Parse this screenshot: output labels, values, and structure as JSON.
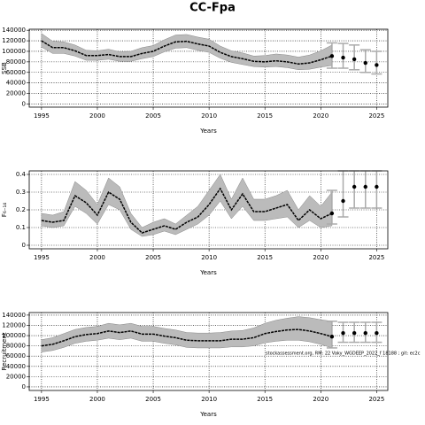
{
  "title": "CC-Fpa",
  "chart_data": [
    {
      "type": "line",
      "ylabel": "SSB",
      "xlabel": "Years",
      "xlim": [
        1993.9,
        2026
      ],
      "xticks": [
        1995,
        2000,
        2005,
        2010,
        2015,
        2020,
        2025
      ],
      "ylim": [
        -6000,
        142000
      ],
      "yticks": [
        0,
        20000,
        40000,
        60000,
        80000,
        100000,
        120000,
        140000
      ],
      "grid": true,
      "x": [
        1995,
        1996,
        1997,
        1998,
        1999,
        2000,
        2001,
        2002,
        2003,
        2004,
        2005,
        2006,
        2007,
        2008,
        2009,
        2010,
        2011,
        2012,
        2013,
        2014,
        2015,
        2016,
        2017,
        2018,
        2019,
        2020,
        2021
      ],
      "series": [
        {
          "color": "#000000",
          "band_color": "#bbbbbb",
          "values": [
            120000,
            107000,
            107000,
            101000,
            92000,
            92000,
            94000,
            90000,
            90000,
            96000,
            100000,
            110000,
            118000,
            119000,
            114000,
            110000,
            98000,
            90000,
            86000,
            81000,
            80000,
            82000,
            80000,
            76000,
            78000,
            84000,
            91000
          ],
          "upper": [
            134000,
            119000,
            118000,
            112000,
            102000,
            101000,
            104000,
            99000,
            100000,
            107000,
            111000,
            122000,
            131000,
            132000,
            127000,
            123000,
            110000,
            101000,
            97000,
            91000,
            92000,
            95000,
            93000,
            89000,
            93000,
            101000,
            112000
          ],
          "lower": [
            108000,
            96000,
            96000,
            91000,
            83000,
            83000,
            85000,
            81000,
            81000,
            86000,
            90000,
            99000,
            106000,
            107000,
            102000,
            98000,
            87000,
            79000,
            75000,
            71000,
            70000,
            71000,
            69000,
            65000,
            66000,
            70000,
            73000
          ]
        }
      ],
      "forecast": {
        "color": "#000000",
        "bar_color": "#aaaaaa",
        "x": [
          2021,
          2022,
          2023,
          2024,
          2025
        ],
        "values": [
          91000,
          88000,
          85000,
          78000,
          74000
        ],
        "lower": [
          68000,
          68000,
          65000,
          60000,
          57000
        ],
        "upper": [
          116000,
          115000,
          112000,
          103000,
          100000
        ]
      }
    },
    {
      "type": "line",
      "ylabel": "F₆₋₁₄",
      "xlabel": "Years",
      "xlim": [
        1993.9,
        2026
      ],
      "xticks": [
        1995,
        2000,
        2005,
        2010,
        2015,
        2020,
        2025
      ],
      "ylim": [
        -0.02,
        0.42
      ],
      "yticks": [
        0,
        0.1,
        0.2,
        0.3,
        0.4
      ],
      "grid": true,
      "x": [
        1995,
        1996,
        1997,
        1998,
        1999,
        2000,
        2001,
        2002,
        2003,
        2004,
        2005,
        2006,
        2007,
        2008,
        2009,
        2010,
        2011,
        2012,
        2013,
        2014,
        2015,
        2016,
        2017,
        2018,
        2019,
        2020,
        2021
      ],
      "series": [
        {
          "color": "#000000",
          "band_color": "#bbbbbb",
          "values": [
            0.14,
            0.13,
            0.14,
            0.28,
            0.24,
            0.17,
            0.3,
            0.26,
            0.13,
            0.07,
            0.09,
            0.11,
            0.09,
            0.13,
            0.16,
            0.23,
            0.32,
            0.2,
            0.29,
            0.19,
            0.19,
            0.21,
            0.23,
            0.14,
            0.2,
            0.15,
            0.18
          ],
          "upper": [
            0.18,
            0.17,
            0.19,
            0.36,
            0.31,
            0.23,
            0.38,
            0.33,
            0.18,
            0.1,
            0.13,
            0.15,
            0.12,
            0.17,
            0.22,
            0.31,
            0.4,
            0.26,
            0.38,
            0.26,
            0.26,
            0.28,
            0.31,
            0.2,
            0.28,
            0.22,
            0.3
          ],
          "lower": [
            0.11,
            0.1,
            0.11,
            0.22,
            0.18,
            0.12,
            0.23,
            0.2,
            0.09,
            0.05,
            0.06,
            0.08,
            0.06,
            0.09,
            0.12,
            0.17,
            0.25,
            0.15,
            0.22,
            0.14,
            0.14,
            0.15,
            0.16,
            0.1,
            0.14,
            0.1,
            0.11
          ]
        }
      ],
      "forecast": {
        "color": "#000000",
        "bar_color": "#aaaaaa",
        "x": [
          2021,
          2022,
          2023,
          2024,
          2025
        ],
        "values": [
          0.18,
          0.25,
          0.33,
          0.33,
          0.33
        ],
        "lower": [
          0.12,
          0.16,
          0.21,
          0.21,
          0.21
        ],
        "upper": [
          0.31,
          0.42,
          0.42,
          0.42,
          0.42
        ]
      }
    },
    {
      "type": "line",
      "ylabel": "Recruitment",
      "xlabel": "Years",
      "annotation": "stockassessment.org, RM: 22 Vaky_WGDEEP_2022_f 18188 ; git: ec2c",
      "xlim": [
        1993.9,
        2026
      ],
      "xticks": [
        1995,
        2000,
        2005,
        2010,
        2015,
        2020,
        2025
      ],
      "ylim": [
        -7000,
        145000
      ],
      "yticks": [
        0,
        20000,
        40000,
        60000,
        80000,
        100000,
        120000,
        140000
      ],
      "grid": true,
      "x": [
        1995,
        1996,
        1997,
        1998,
        1999,
        2000,
        2001,
        2002,
        2003,
        2004,
        2005,
        2006,
        2007,
        2008,
        2009,
        2010,
        2011,
        2012,
        2013,
        2014,
        2015,
        2016,
        2017,
        2018,
        2019,
        2020,
        2021
      ],
      "series": [
        {
          "color": "#000000",
          "band_color": "#bbbbbb",
          "values": [
            80000,
            83000,
            90000,
            98000,
            102000,
            104000,
            109000,
            106000,
            109000,
            103000,
            103000,
            99000,
            96000,
            91000,
            90000,
            90000,
            90000,
            93000,
            93000,
            96000,
            104000,
            108000,
            111000,
            112000,
            109000,
            104000,
            98000
          ],
          "upper": [
            92000,
            96000,
            104000,
            112000,
            116000,
            118000,
            124000,
            121000,
            124000,
            118000,
            118000,
            114000,
            111000,
            106000,
            105000,
            105000,
            106000,
            109000,
            110000,
            115000,
            124000,
            130000,
            134000,
            137000,
            135000,
            131000,
            128000
          ],
          "lower": [
            68000,
            71000,
            77000,
            85000,
            89000,
            91000,
            95000,
            92000,
            95000,
            89000,
            89000,
            85000,
            82000,
            77000,
            76000,
            76000,
            76000,
            78000,
            78000,
            80000,
            86000,
            89000,
            91000,
            91000,
            88000,
            83000,
            76000
          ]
        }
      ],
      "forecast": {
        "color": "#000000",
        "bar_color": "#aaaaaa",
        "x": [
          2021,
          2022,
          2023,
          2024,
          2025
        ],
        "values": [
          98000,
          105000,
          105000,
          105000,
          105000
        ],
        "lower": [
          76000,
          87000,
          87000,
          87000,
          87000
        ],
        "upper": [
          128000,
          126000,
          126000,
          126000,
          126000
        ]
      }
    }
  ]
}
